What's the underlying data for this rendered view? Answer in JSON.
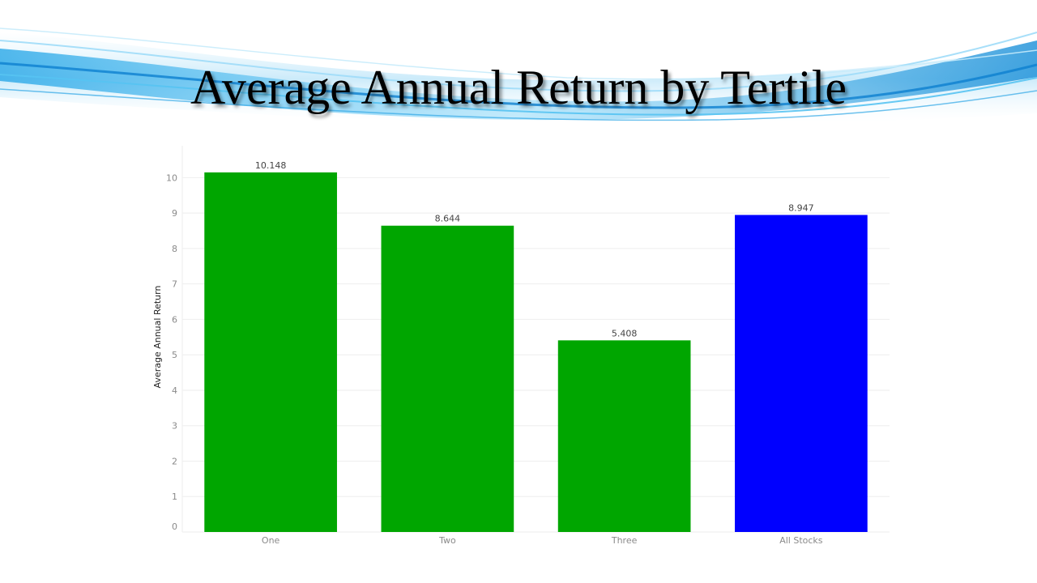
{
  "slide": {
    "title": "Average Annual Return by Tertile"
  },
  "colors": {
    "green_bar": "#00a600",
    "blue_bar": "#0000ff",
    "gridline": "#eeeeee",
    "banner_blue": "#1e9fe0"
  },
  "chart_data": {
    "type": "bar",
    "title": "",
    "xlabel": "",
    "ylabel": "Average Annual Return",
    "categories": [
      "One",
      "Two",
      "Three",
      "All Stocks"
    ],
    "values": [
      10.148,
      8.644,
      5.408,
      8.947
    ],
    "data_labels": [
      "10.148",
      "8.644",
      "5.408",
      "8.947"
    ],
    "bar_colors": [
      "#00a600",
      "#00a600",
      "#00a600",
      "#0000ff"
    ],
    "ylim": [
      0,
      10.9
    ],
    "yticks": [
      0,
      1,
      2,
      3,
      4,
      5,
      6,
      7,
      8,
      9,
      10
    ],
    "grid": true,
    "legend": "none"
  }
}
